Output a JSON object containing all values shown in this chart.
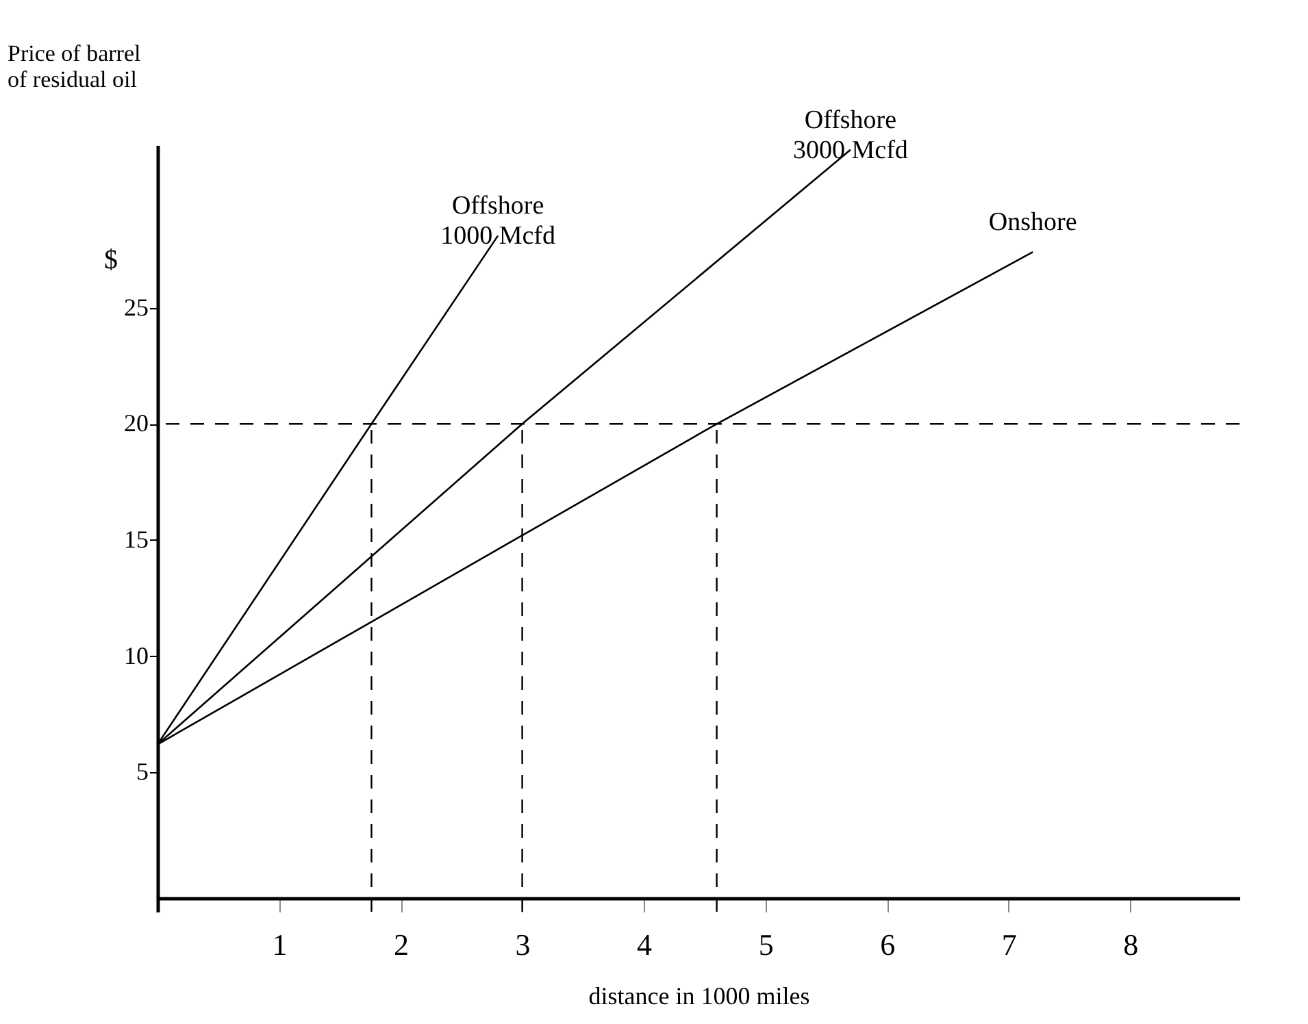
{
  "chart_data": {
    "type": "line",
    "xlabel": "distance in 1000 miles",
    "ylabel": "Price of barrel\nof residual oil",
    "annotations": [
      "$"
    ],
    "series": [
      {
        "name": "Offshore\n1000 Mcfd",
        "color": "#000000",
        "x": [
          0,
          1.76,
          2.8
        ],
        "values": [
          6.2,
          20,
          28.1
        ]
      },
      {
        "name": "Offshore\n3000 Mcfd",
        "color": "#000000",
        "x": [
          0,
          3.0,
          5.7
        ],
        "values": [
          6.2,
          20,
          31.8
        ]
      },
      {
        "name": "Onshore",
        "color": "#000000",
        "x": [
          0,
          4.6,
          7.2
        ],
        "values": [
          6.2,
          20,
          27.4
        ]
      }
    ],
    "ref_lines": [
      {
        "axis": "y",
        "value": 20,
        "line_style": "dashed"
      },
      {
        "axis": "x",
        "value": 1.76,
        "line_style": "dashed"
      },
      {
        "axis": "x",
        "value": 3.0,
        "line_style": "dashed"
      },
      {
        "axis": "x",
        "value": 4.6,
        "line_style": "dashed"
      }
    ],
    "xlim": [
      0,
      8.9
    ],
    "xticks": [
      1,
      2,
      3,
      4,
      5,
      6,
      7,
      8
    ],
    "ylim": [
      -1,
      32
    ],
    "yticks": [
      5,
      10,
      15,
      20,
      25
    ],
    "grid": false,
    "legend": false,
    "marker": "none",
    "line_style": "solid"
  }
}
